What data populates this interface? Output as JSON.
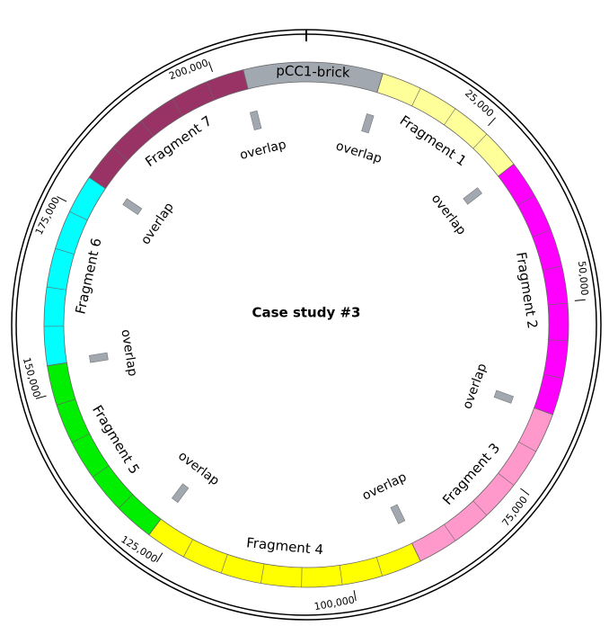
{
  "chart_data": {
    "type": "circular-map",
    "title": "Case study #3",
    "xlim": [
      0,
      212000
    ],
    "xticks": [
      {
        "value": 25000,
        "label": "25,000"
      },
      {
        "value": 50000,
        "label": "50,000"
      },
      {
        "value": 75000,
        "label": "75,000"
      },
      {
        "value": 100000,
        "label": "100,000"
      },
      {
        "value": 125000,
        "label": "125,000"
      },
      {
        "value": 150000,
        "label": "150,000"
      },
      {
        "value": 175000,
        "label": "175,000"
      },
      {
        "value": 200000,
        "label": "200,000"
      }
    ],
    "segments": [
      {
        "name": "pCC1-brick",
        "start": 203800,
        "end": 10000,
        "color": "#a2a8b0"
      },
      {
        "name": "Fragment 1",
        "start": 10000,
        "end": 30800,
        "color": "#ffff99"
      },
      {
        "name": "Fragment 2",
        "start": 30800,
        "end": 64800,
        "color": "#ff00ff"
      },
      {
        "name": "Fragment 3",
        "start": 64800,
        "end": 90800,
        "color": "#ff99cc"
      },
      {
        "name": "Fragment 4",
        "start": 90800,
        "end": 127700,
        "color": "#ffff00"
      },
      {
        "name": "Fragment 5",
        "start": 127700,
        "end": 153700,
        "color": "#00ee00"
      },
      {
        "name": "Fragment 6",
        "start": 153700,
        "end": 179100,
        "color": "#00ffff"
      },
      {
        "name": "Fragment 7",
        "start": 179100,
        "end": 203800,
        "color": "#993366"
      }
    ],
    "overlaps": [
      {
        "label": "overlap",
        "position": 10000
      },
      {
        "label": "overlap",
        "position": 30800
      },
      {
        "label": "overlap",
        "position": 64800
      },
      {
        "label": "overlap",
        "position": 90800
      },
      {
        "label": "overlap",
        "position": 127700
      },
      {
        "label": "overlap",
        "position": 153700
      },
      {
        "label": "overlap",
        "position": 179100
      },
      {
        "label": "overlap",
        "position": 203800
      }
    ]
  }
}
